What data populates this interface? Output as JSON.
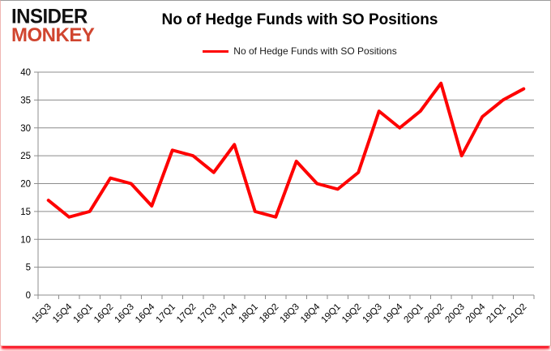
{
  "logo": {
    "line1": "INSIDER",
    "line2": "MONKEY",
    "line2_color": "#d0452f"
  },
  "header": {
    "title": "No of Hedge Funds with SO Positions"
  },
  "legend": {
    "label": "No of Hedge Funds with SO Positions",
    "line_color": "#fe0000"
  },
  "colors": {
    "series_red": "#fe0000",
    "grid_gray": "#8c8c8c",
    "axis_gray": "#8c8c8c",
    "logo_red": "#d0452f",
    "bottom_glow_red": "#fb1423",
    "background": "#ffffff"
  },
  "chart_data": {
    "type": "line",
    "title": "No of Hedge Funds with SO Positions",
    "categories": [
      "15Q3",
      "15Q4",
      "16Q1",
      "16Q2",
      "16Q3",
      "16Q4",
      "17Q1",
      "17Q2",
      "17Q3",
      "17Q4",
      "18Q1",
      "18Q2",
      "18Q3",
      "18Q4",
      "19Q1",
      "19Q2",
      "19Q3",
      "19Q4",
      "20Q1",
      "20Q2",
      "20Q3",
      "20Q4",
      "21Q1",
      "21Q2"
    ],
    "series": [
      {
        "name": "No of Hedge Funds with SO Positions",
        "color": "#fe0000",
        "values": [
          17,
          14,
          15,
          21,
          20,
          16,
          26,
          25,
          22,
          27,
          15,
          14,
          24,
          20,
          19,
          22,
          33,
          30,
          33,
          38,
          25,
          32,
          35,
          37
        ]
      }
    ],
    "xlabel": "",
    "ylabel": "",
    "ylim": [
      0,
      40
    ],
    "ytick_step": 5,
    "y_ticks": [
      0,
      5,
      10,
      15,
      20,
      25,
      30,
      35,
      40
    ],
    "grid": true,
    "legend_position": "top-center",
    "x_tick_rotation": -45
  }
}
